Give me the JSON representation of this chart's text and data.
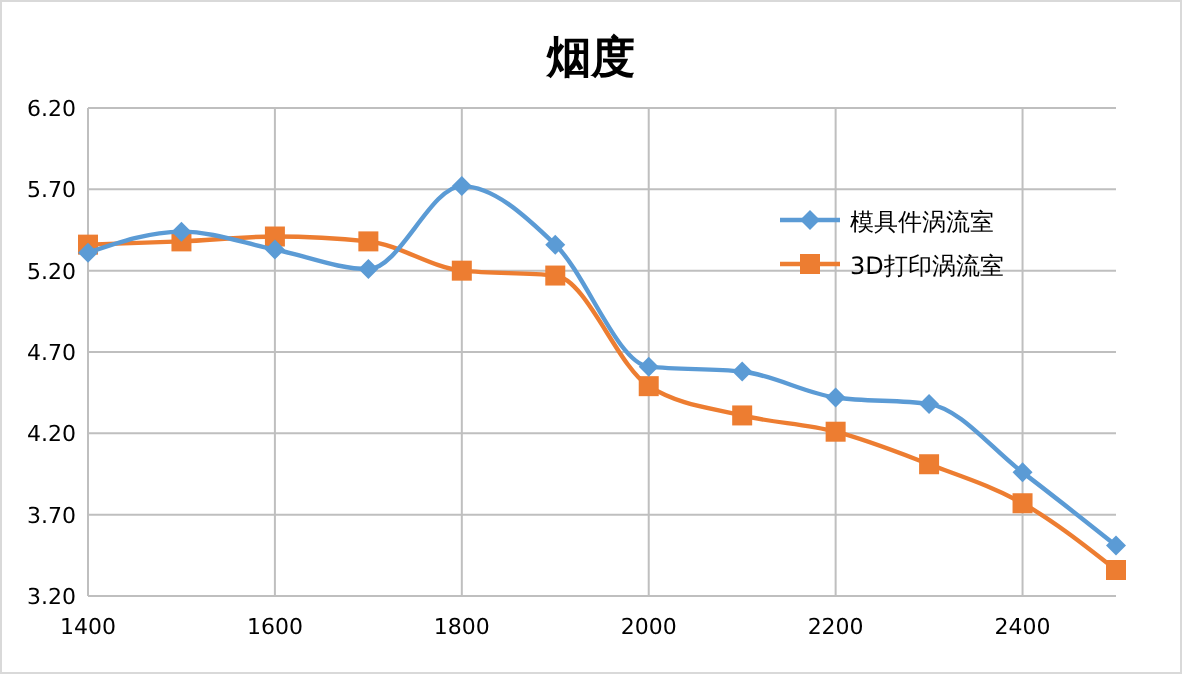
{
  "chart_data": {
    "type": "line",
    "title": "烟度",
    "x": [
      1400,
      1500,
      1600,
      1700,
      1800,
      1900,
      2000,
      2100,
      2200,
      2300,
      2400,
      2500
    ],
    "series": [
      {
        "name": "模具件涡流室",
        "color": "#5b9bd5",
        "marker": "diamond",
        "values": [
          5.31,
          5.44,
          5.33,
          5.21,
          5.72,
          5.36,
          4.61,
          4.58,
          4.42,
          4.38,
          3.96,
          3.51
        ]
      },
      {
        "name": "3D打印涡流室",
        "color": "#ed7d31",
        "marker": "square",
        "values": [
          5.36,
          5.38,
          5.41,
          5.38,
          5.2,
          5.17,
          4.49,
          4.31,
          4.21,
          4.01,
          3.77,
          3.36
        ]
      }
    ],
    "xlim": [
      1400,
      2500
    ],
    "xticks": [
      1400,
      1600,
      1800,
      2000,
      2200,
      2400
    ],
    "ylim": [
      3.2,
      6.2
    ],
    "yticks": [
      {
        "value": 3.2,
        "label": "3.20"
      },
      {
        "value": 3.7,
        "label": "3.70"
      },
      {
        "value": 4.2,
        "label": "4.20"
      },
      {
        "value": 4.7,
        "label": "4.70"
      },
      {
        "value": 5.2,
        "label": "5.20"
      },
      {
        "value": 5.7,
        "label": "5.70"
      },
      {
        "value": 6.2,
        "label": "6.20"
      }
    ],
    "grid": true,
    "legend": "right",
    "line_style": "solid"
  }
}
